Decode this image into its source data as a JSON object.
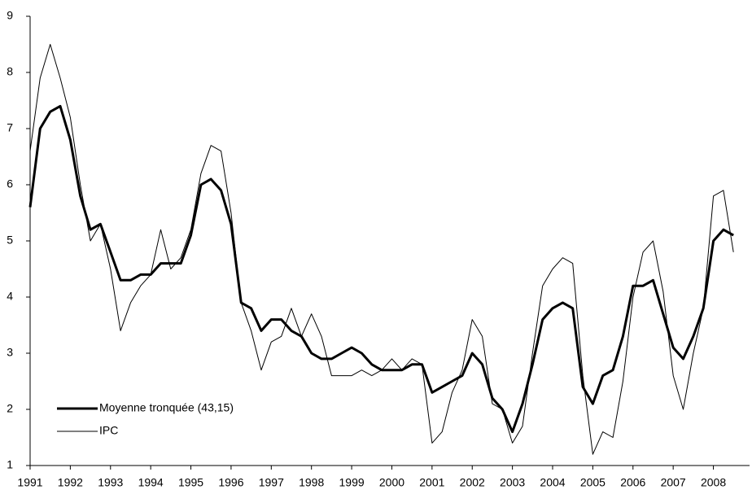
{
  "chart_data": {
    "type": "line",
    "x": [
      1991,
      1991.25,
      1991.5,
      1991.75,
      1992,
      1992.25,
      1992.5,
      1992.75,
      1993,
      1993.25,
      1993.5,
      1993.75,
      1994,
      1994.25,
      1994.5,
      1994.75,
      1995,
      1995.25,
      1995.5,
      1995.75,
      1996,
      1996.25,
      1996.5,
      1996.75,
      1997,
      1997.25,
      1997.5,
      1997.75,
      1998,
      1998.25,
      1998.5,
      1998.75,
      1999,
      1999.25,
      1999.5,
      1999.75,
      2000,
      2000.25,
      2000.5,
      2000.75,
      2001,
      2001.25,
      2001.5,
      2001.75,
      2002,
      2002.25,
      2002.5,
      2002.75,
      2003,
      2003.25,
      2003.5,
      2003.75,
      2004,
      2004.25,
      2004.5,
      2004.75,
      2005,
      2005.25,
      2005.5,
      2005.75,
      2006,
      2006.25,
      2006.5,
      2006.75,
      2007,
      2007.25,
      2007.5,
      2007.75,
      2008,
      2008.25,
      2008.5
    ],
    "series": [
      {
        "name": "Moyenne tronquée (43,15)",
        "color": "#000000",
        "width": 3,
        "values": [
          5.6,
          7.0,
          7.3,
          7.4,
          6.8,
          5.8,
          5.2,
          5.3,
          4.8,
          4.3,
          4.3,
          4.4,
          4.4,
          4.6,
          4.6,
          4.6,
          5.1,
          6.0,
          6.1,
          5.9,
          5.3,
          3.9,
          3.8,
          3.4,
          3.6,
          3.6,
          3.4,
          3.3,
          3.0,
          2.9,
          2.9,
          3.0,
          3.1,
          3.0,
          2.8,
          2.7,
          2.7,
          2.7,
          2.8,
          2.8,
          2.3,
          2.4,
          2.5,
          2.6,
          3.0,
          2.8,
          2.2,
          2.0,
          1.6,
          2.1,
          2.8,
          3.6,
          3.8,
          3.9,
          3.8,
          2.4,
          2.1,
          2.6,
          2.7,
          3.3,
          4.2,
          4.2,
          4.3,
          3.7,
          3.1,
          2.9,
          3.3,
          3.8,
          5.0,
          5.2,
          5.1
        ]
      },
      {
        "name": "IPC",
        "color": "#000000",
        "width": 1,
        "values": [
          6.6,
          7.9,
          8.5,
          7.9,
          7.2,
          6.0,
          5.0,
          5.3,
          4.5,
          3.4,
          3.9,
          4.2,
          4.4,
          5.2,
          4.5,
          4.7,
          5.2,
          6.2,
          6.7,
          6.6,
          5.5,
          3.9,
          3.4,
          2.7,
          3.2,
          3.3,
          3.8,
          3.3,
          3.7,
          3.3,
          2.6,
          2.6,
          2.6,
          2.7,
          2.6,
          2.7,
          2.9,
          2.7,
          2.9,
          2.8,
          1.4,
          1.6,
          2.3,
          2.7,
          3.6,
          3.3,
          2.1,
          2.0,
          1.4,
          1.7,
          3.0,
          4.2,
          4.5,
          4.7,
          4.6,
          2.6,
          1.2,
          1.6,
          1.5,
          2.5,
          4.0,
          4.8,
          5.0,
          4.1,
          2.6,
          2.0,
          3.0,
          3.8,
          5.8,
          5.9,
          4.8
        ]
      }
    ],
    "xlim": [
      1991,
      2008.9
    ],
    "xticks": [
      1991,
      1992,
      1993,
      1994,
      1995,
      1996,
      1997,
      1998,
      1999,
      2000,
      2001,
      2002,
      2003,
      2004,
      2005,
      2006,
      2007,
      2008
    ],
    "ylim": [
      1,
      9
    ],
    "yticks": [
      1,
      2,
      3,
      4,
      5,
      6,
      7,
      8,
      9
    ],
    "legend": "lower left"
  }
}
